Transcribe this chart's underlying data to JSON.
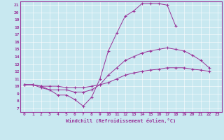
{
  "xlabel": "Windchill (Refroidissement éolien,°C)",
  "bg_color": "#c8e8f0",
  "line_color": "#993399",
  "grid_color": "#ffffff",
  "xmin": 0,
  "xmax": 23,
  "ymin": 7,
  "ymax": 21,
  "yticks": [
    7,
    8,
    9,
    10,
    11,
    12,
    13,
    14,
    15,
    16,
    17,
    18,
    19,
    20,
    21
  ],
  "xticks": [
    0,
    1,
    2,
    3,
    4,
    5,
    6,
    7,
    8,
    9,
    10,
    11,
    12,
    13,
    14,
    15,
    16,
    17,
    18,
    19,
    20,
    21,
    22,
    23
  ],
  "lines": [
    [
      0,
      10.2
    ],
    [
      1,
      10.2
    ],
    [
      2,
      9.8
    ],
    [
      3,
      9.5
    ],
    [
      4,
      8.8
    ],
    [
      5,
      8.8
    ],
    [
      6,
      8.2
    ],
    [
      7,
      7.3
    ],
    [
      8,
      8.5
    ],
    [
      9,
      11.0
    ],
    [
      10,
      14.8
    ],
    [
      11,
      17.2
    ],
    [
      12,
      19.5
    ],
    [
      13,
      20.2
    ],
    [
      14,
      21.2
    ],
    [
      15,
      21.2
    ],
    [
      16,
      21.2
    ],
    [
      17,
      21.0
    ],
    [
      18,
      18.2
    ]
  ],
  "line2": [
    [
      0,
      10.2
    ],
    [
      1,
      10.2
    ],
    [
      2,
      10.0
    ],
    [
      3,
      9.5
    ],
    [
      4,
      9.5
    ],
    [
      5,
      9.5
    ],
    [
      6,
      9.2
    ],
    [
      7,
      9.2
    ],
    [
      8,
      9.5
    ],
    [
      9,
      10.2
    ],
    [
      10,
      11.5
    ],
    [
      11,
      12.5
    ],
    [
      12,
      13.5
    ],
    [
      13,
      14.0
    ],
    [
      14,
      14.5
    ],
    [
      15,
      14.8
    ],
    [
      16,
      15.0
    ],
    [
      17,
      15.2
    ],
    [
      18,
      15.0
    ],
    [
      19,
      14.8
    ],
    [
      20,
      14.2
    ],
    [
      21,
      13.5
    ],
    [
      22,
      12.5
    ]
  ],
  "line3": [
    [
      0,
      10.2
    ],
    [
      1,
      10.2
    ],
    [
      2,
      10.0
    ],
    [
      3,
      10.0
    ],
    [
      4,
      10.0
    ],
    [
      5,
      9.8
    ],
    [
      6,
      9.8
    ],
    [
      7,
      9.8
    ],
    [
      8,
      10.0
    ],
    [
      9,
      10.2
    ],
    [
      10,
      10.5
    ],
    [
      11,
      11.0
    ],
    [
      12,
      11.5
    ],
    [
      13,
      11.8
    ],
    [
      14,
      12.0
    ],
    [
      15,
      12.2
    ],
    [
      16,
      12.3
    ],
    [
      17,
      12.5
    ],
    [
      18,
      12.5
    ],
    [
      19,
      12.5
    ],
    [
      20,
      12.3
    ],
    [
      21,
      12.2
    ],
    [
      22,
      12.0
    ]
  ]
}
